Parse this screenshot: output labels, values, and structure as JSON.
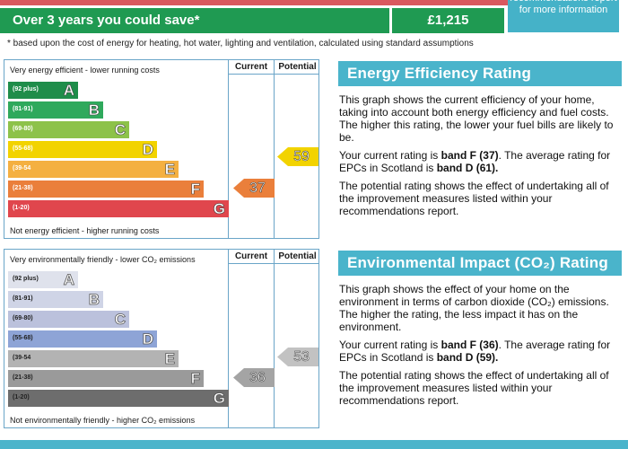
{
  "savings": {
    "label": "Over 3 years you could save*",
    "amount": "£1,215",
    "recommendations_note": "recommendations report for more information",
    "footnote": "* based upon the cost of energy for heating, hot water, lighting and ventilation, calculated using standard assumptions"
  },
  "energy_chart": {
    "top_caption": "Very energy efficient - lower running costs",
    "bottom_caption": "Not energy efficient - higher running costs",
    "col_current": "Current",
    "col_potential": "Potential",
    "bands": [
      {
        "range": "(92 plus)",
        "letter": "A",
        "color": "#1f8d4a"
      },
      {
        "range": "(81-91)",
        "letter": "B",
        "color": "#2fa95c"
      },
      {
        "range": "(69-80)",
        "letter": "C",
        "color": "#8dc24a"
      },
      {
        "range": "(55-68)",
        "letter": "D",
        "color": "#f2d300"
      },
      {
        "range": "(39-54",
        "letter": "E",
        "color": "#f4b041"
      },
      {
        "range": "(21-38)",
        "letter": "F",
        "color": "#ea7f3b"
      },
      {
        "range": "(1-20)",
        "letter": "G",
        "color": "#e0464d"
      }
    ],
    "current": {
      "value": "37",
      "color": "#ea7f3b"
    },
    "potential": {
      "value": "59",
      "color": "#f2d300"
    }
  },
  "environment_chart": {
    "top_caption": "Very environmentally friendly - lower CO₂ emissions",
    "bottom_caption": "Not environmentally friendly - higher CO₂ emissions",
    "col_current": "Current",
    "col_potential": "Potential",
    "bands": [
      {
        "range": "(92 plus)",
        "letter": "A",
        "color": "#dfe2ec"
      },
      {
        "range": "(81-91)",
        "letter": "B",
        "color": "#cfd4e6"
      },
      {
        "range": "(69-80)",
        "letter": "C",
        "color": "#bbc1dc"
      },
      {
        "range": "(55-68)",
        "letter": "D",
        "color": "#8ea4d6"
      },
      {
        "range": "(39-54",
        "letter": "E",
        "color": "#b3b3b3"
      },
      {
        "range": "(21-38)",
        "letter": "F",
        "color": "#9a9a9a"
      },
      {
        "range": "(1-20)",
        "letter": "G",
        "color": "#6d6d6d"
      }
    ],
    "current": {
      "value": "36",
      "color": "#a4a4a4"
    },
    "potential": {
      "value": "53",
      "color": "#c2c2c2"
    }
  },
  "energy_panel": {
    "title": "Energy Efficiency Rating",
    "p1": "This graph shows the current efficiency of your home, taking into account both energy efficiency and fuel costs. The higher this rating, the lower your fuel bills are likely to be.",
    "p2_a": "Your current rating is ",
    "p2_b": "band F (37)",
    "p2_c": ". The average rating for EPCs in Scotland is ",
    "p2_d": "band D (61).",
    "p3": "The potential rating shows the effect of undertaking all of the improvement measures listed within your recommendations report."
  },
  "environment_panel": {
    "title": "Environmental Impact (CO₂) Rating",
    "p1": "This graph shows the effect of your home on the environment in terms of carbon dioxide (CO₂) emissions. The higher the rating, the less impact it has on the environment.",
    "p2_a": "Your current rating is ",
    "p2_b": "band F (36)",
    "p2_c": ". The average rating for EPCs in Scotland is ",
    "p2_d": "band D (59).",
    "p3": "The potential rating shows the effect of undertaking all of the improvement measures listed within your recommendations report."
  }
}
